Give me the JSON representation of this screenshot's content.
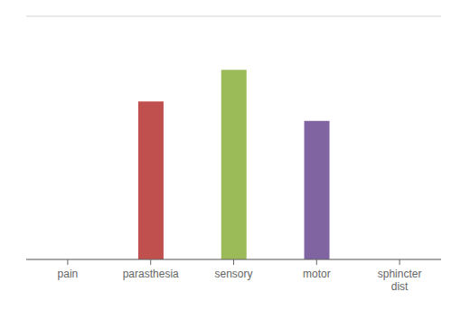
{
  "chart_data": {
    "type": "bar",
    "categories": [
      "pain",
      "parasthesia",
      "sensory",
      "motor",
      "sphincter\ndist"
    ],
    "values": [
      0,
      65,
      78,
      57,
      0
    ],
    "colors": [
      "#c0504d",
      "#c0504d",
      "#9bbb59",
      "#8064a2",
      "#4bacc6"
    ],
    "ylim": [
      0,
      100
    ],
    "yticks": [
      0,
      8.333333333333334,
      16.666666666666668,
      25,
      33.333333333333336,
      41.66666666666667,
      50,
      58.333333333333336,
      66.66666666666667,
      75,
      83.33333333333334,
      91.66666666666667,
      100
    ],
    "grid": true,
    "tick_labels": "x"
  }
}
